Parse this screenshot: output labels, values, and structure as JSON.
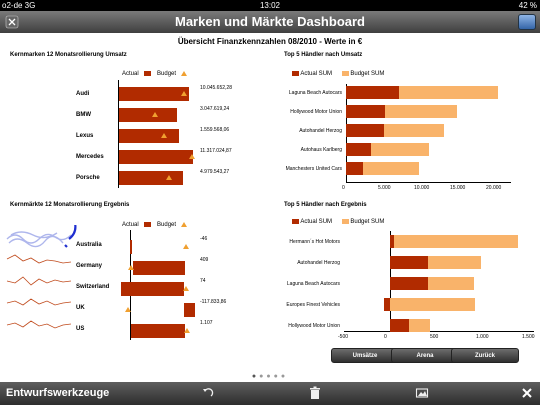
{
  "status": {
    "carrier": "o2-de 3G",
    "time": "13:02",
    "battery": "42 %"
  },
  "header": {
    "title": "Marken und Märkte Dashboard"
  },
  "subtitle": "Übersicht Finanzkennzahlen 08/2010 - Werte in €",
  "kernmarken": {
    "title": "Kernmarken 12 Monatsrollierung Umsatz",
    "legend_actual": "Actual",
    "legend_budget": "Budget",
    "rows": [
      {
        "label": "Audi",
        "value_text": "10.045.652,28"
      },
      {
        "label": "BMW",
        "value_text": "3.047.619,24"
      },
      {
        "label": "Lexus",
        "value_text": "1.559.568,06"
      },
      {
        "label": "Mercedes",
        "value_text": "11.317.024,87"
      },
      {
        "label": "Porsche",
        "value_text": "4.979.543,27"
      }
    ]
  },
  "kernmaerkte": {
    "title": "Kernmärkte 12 Monatsrollierung Ergebnis",
    "legend_actual": "Actual",
    "legend_budget": "Budget",
    "rows": [
      {
        "label": "Australia",
        "value_text": "-46"
      },
      {
        "label": "Germany",
        "value_text": "409"
      },
      {
        "label": "Switzerland",
        "value_text": "74"
      },
      {
        "label": "UK",
        "value_text": "-117.833,86"
      },
      {
        "label": "US",
        "value_text": "1.107"
      }
    ]
  },
  "top5_umsatz": {
    "title": "Top 5 Händler nach Umsatz",
    "legend_actual": "Actual SUM",
    "legend_budget": "Budget SUM",
    "dealers": [
      "Laguna Beach Autocars",
      "Hollywood Motor Union",
      "Autohandel Herzog",
      "Autohaus Karlberg",
      "Manchesters United Cars"
    ],
    "ticks": [
      "0",
      "5.000",
      "10.000",
      "15.000",
      "20.000"
    ]
  },
  "top5_ergebnis": {
    "title": "Top 5 Händler nach Ergebnis",
    "legend_actual": "Actual SUM",
    "legend_budget": "Budget SUM",
    "dealers": [
      "Hermann´s Hot Motors",
      "Autohandel Herzog",
      "Laguna Beach Autocars",
      "Europes Finest Vehicles",
      "Hollywood Motor Union"
    ],
    "ticks": [
      "-500",
      "0",
      "500",
      "1.000",
      "1.500"
    ]
  },
  "buttons": {
    "umsaetze": "Umsätze",
    "arena": "Arena",
    "zurueck": "Zurück"
  },
  "bottom": {
    "label": "Entwurfswerkzeuge"
  },
  "colors": {
    "actual": "#b12b00",
    "budget": "#f9b36a",
    "budget_marker": "#f0a030"
  }
}
